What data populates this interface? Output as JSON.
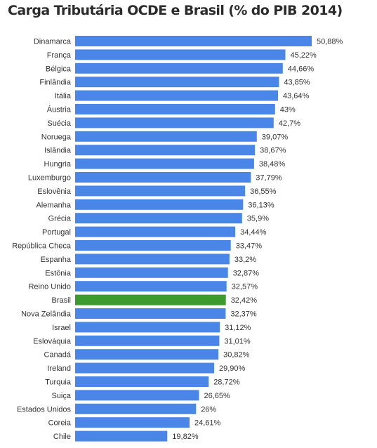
{
  "chart_data": {
    "type": "bar",
    "orientation": "horizontal",
    "title": "Carga Tributária OCDE e Brasil (% do PIB 2014)",
    "categories": [
      "Dinamarca",
      "França",
      "Bélgica",
      "Finlândia",
      "Itália",
      "Áustria",
      "Suécia",
      "Noruega",
      "Islândia",
      "Hungria",
      "Luxemburgo",
      "Eslovênia",
      "Alemanha",
      "Grécia",
      "Portugal",
      "República Checa",
      "Espanha",
      "Estônia",
      "Reino Unido",
      "Brasil",
      "Nova Zelândia",
      "Israel",
      "Eslováquia",
      "Canadá",
      "Ireland",
      "Turquia",
      "Suiça",
      "Estados Unidos",
      "Coreia",
      "Chile"
    ],
    "values": [
      50.88,
      45.22,
      44.66,
      43.85,
      43.64,
      43,
      42.7,
      39.07,
      38.67,
      38.48,
      37.79,
      36.55,
      36.13,
      35.9,
      34.44,
      33.47,
      33.2,
      32.87,
      32.57,
      32.42,
      32.37,
      31.12,
      31.01,
      30.82,
      29.9,
      28.72,
      26.65,
      26,
      24.61,
      19.82
    ],
    "value_labels": [
      "50,88%",
      "45,22%",
      "44,66%",
      "43,85%",
      "43,64%",
      "43%",
      "42,7%",
      "39,07%",
      "38,67%",
      "38,48%",
      "37,79%",
      "36,55%",
      "36,13%",
      "35,9%",
      "34,44%",
      "33,47%",
      "33,2%",
      "32,87%",
      "32,57%",
      "32,42%",
      "32,37%",
      "31,12%",
      "31,01%",
      "30,82%",
      "29,90%",
      "28,72%",
      "26,65%",
      "26%",
      "24,61%",
      "19,82%"
    ],
    "colors": {
      "default": "#4a86e8",
      "highlight": "#3d9a2f"
    },
    "highlight_category": "Brasil",
    "xlim": [
      0,
      50.88
    ],
    "grid": false,
    "legend": "none"
  }
}
